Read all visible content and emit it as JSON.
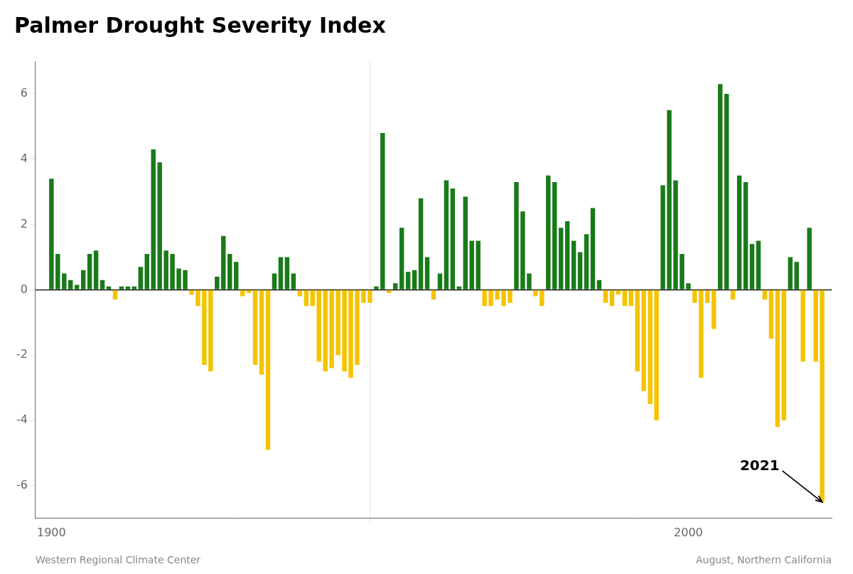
{
  "chart_data": {
    "type": "bar",
    "title": "Palmer Drought Severity Index",
    "subtitle": [
      "Western Regional Climate Center",
      "August, Northern California"
    ],
    "x": [
      1900,
      1901,
      1902,
      1903,
      1904,
      1905,
      1906,
      1907,
      1908,
      1909,
      1910,
      1911,
      1912,
      1913,
      1914,
      1915,
      1916,
      1917,
      1918,
      1919,
      1920,
      1921,
      1922,
      1923,
      1924,
      1925,
      1926,
      1927,
      1928,
      1929,
      1930,
      1931,
      1932,
      1933,
      1934,
      1935,
      1936,
      1937,
      1938,
      1939,
      1940,
      1941,
      1942,
      1943,
      1944,
      1945,
      1946,
      1947,
      1948,
      1949,
      1950,
      1951,
      1952,
      1953,
      1954,
      1955,
      1956,
      1957,
      1958,
      1959,
      1960,
      1961,
      1962,
      1963,
      1964,
      1965,
      1966,
      1967,
      1968,
      1969,
      1970,
      1971,
      1972,
      1973,
      1974,
      1975,
      1976,
      1977,
      1978,
      1979,
      1980,
      1981,
      1982,
      1983,
      1984,
      1985,
      1986,
      1987,
      1988,
      1989,
      1990,
      1991,
      1992,
      1993,
      1994,
      1995,
      1996,
      1997,
      1998,
      1999,
      2000,
      2001,
      2002,
      2003,
      2004,
      2005,
      2006,
      2007,
      2008,
      2009,
      2010,
      2011,
      2012,
      2013,
      2014,
      2015,
      2016,
      2017,
      2018,
      2019,
      2020,
      2021
    ],
    "values": [
      3.4,
      1.1,
      0.5,
      0.3,
      0.15,
      0.6,
      1.1,
      1.2,
      0.3,
      0.1,
      -0.3,
      0.1,
      0.1,
      0.1,
      0.7,
      1.1,
      4.3,
      3.9,
      1.2,
      1.1,
      0.65,
      0.6,
      -0.15,
      -0.5,
      -2.3,
      -2.5,
      0.4,
      1.65,
      1.1,
      0.85,
      -0.2,
      -0.1,
      -2.3,
      -2.6,
      -4.9,
      0.5,
      1.0,
      1.0,
      0.5,
      -0.2,
      -0.5,
      -0.5,
      -2.2,
      -2.5,
      -2.4,
      -2.0,
      -2.5,
      -2.7,
      -2.3,
      -0.4,
      -0.4,
      0.1,
      4.8,
      -0.1,
      0.2,
      1.9,
      0.55,
      0.6,
      2.8,
      1.0,
      -0.3,
      0.5,
      3.35,
      3.1,
      0.1,
      2.85,
      1.5,
      1.5,
      -0.5,
      -0.5,
      -0.3,
      -0.5,
      -0.4,
      3.3,
      2.4,
      0.5,
      -0.2,
      -0.5,
      3.5,
      3.3,
      1.9,
      2.1,
      1.5,
      1.15,
      1.7,
      2.5,
      0.3,
      -0.4,
      -0.5,
      -0.15,
      -0.5,
      -0.5,
      -2.5,
      -3.1,
      -3.5,
      -4.0,
      3.2,
      5.5,
      3.35,
      1.1,
      0.2,
      -0.4,
      -2.7,
      -0.4,
      -1.2,
      6.3,
      6.0,
      -0.3,
      3.5,
      3.3,
      1.4,
      1.5,
      -0.3,
      -1.5,
      -4.2,
      -4.0,
      1.0,
      0.85,
      -2.2,
      1.9,
      -2.2,
      -6.5
    ],
    "colors": [
      "#1a7a1a",
      "#1a7a1a",
      "#1a7a1a",
      "#1a7a1a",
      "#1a7a1a",
      "#1a7a1a",
      "#1a7a1a",
      "#1a7a1a",
      "#1a7a1a",
      "#1a7a1a",
      "#f5c400",
      "#1a7a1a",
      "#1a7a1a",
      "#1a7a1a",
      "#1a7a1a",
      "#1a7a1a",
      "#1a7a1a",
      "#1a7a1a",
      "#1a7a1a",
      "#1a7a1a",
      "#1a7a1a",
      "#1a7a1a",
      "#f5c400",
      "#f5c400",
      "#f5c400",
      "#f5c400",
      "#1a7a1a",
      "#1a7a1a",
      "#1a7a1a",
      "#1a7a1a",
      "#f5c400",
      "#f5c400",
      "#f5c400",
      "#f5c400",
      "#f5c400",
      "#1a7a1a",
      "#1a7a1a",
      "#1a7a1a",
      "#1a7a1a",
      "#f5c400",
      "#f5c400",
      "#f5c400",
      "#f5c400",
      "#f5c400",
      "#f5c400",
      "#f5c400",
      "#f5c400",
      "#f5c400",
      "#f5c400",
      "#f5c400",
      "#f5c400",
      "#1a7a1a",
      "#1a7a1a",
      "#f5c400",
      "#1a7a1a",
      "#1a7a1a",
      "#1a7a1a",
      "#1a7a1a",
      "#1a7a1a",
      "#1a7a1a",
      "#f5c400",
      "#1a7a1a",
      "#1a7a1a",
      "#1a7a1a",
      "#1a7a1a",
      "#1a7a1a",
      "#1a7a1a",
      "#1a7a1a",
      "#f5c400",
      "#f5c400",
      "#f5c400",
      "#f5c400",
      "#f5c400",
      "#1a7a1a",
      "#1a7a1a",
      "#1a7a1a",
      "#f5c400",
      "#f5c400",
      "#1a7a1a",
      "#1a7a1a",
      "#1a7a1a",
      "#1a7a1a",
      "#1a7a1a",
      "#1a7a1a",
      "#1a7a1a",
      "#1a7a1a",
      "#1a7a1a",
      "#f5c400",
      "#f5c400",
      "#f5c400",
      "#f5c400",
      "#f5c400",
      "#f5c400",
      "#f5c400",
      "#f5c400",
      "#f5c400",
      "#1a7a1a",
      "#1a7a1a",
      "#1a7a1a",
      "#1a7a1a",
      "#1a7a1a",
      "#f5c400",
      "#f5c400",
      "#f5c400",
      "#f5c400",
      "#1a7a1a",
      "#1a7a1a",
      "#f5c400",
      "#1a7a1a",
      "#1a7a1a",
      "#1a7a1a",
      "#1a7a1a",
      "#f5c400",
      "#f5c400",
      "#f5c400",
      "#f5c400",
      "#1a7a1a",
      "#1a7a1a",
      "#f5c400",
      "#1a7a1a",
      "#f5c400",
      "#f5c400"
    ],
    "xlim": [
      1897.5,
      2022.5
    ],
    "xticks": [
      1900,
      2000
    ],
    "ylim": [
      -7,
      7
    ],
    "yticks": [
      -6,
      -4,
      -2,
      0,
      2,
      4,
      6
    ],
    "grid": true,
    "annotations": [
      {
        "text": "2021",
        "x": 2021,
        "y": -6.5
      }
    ]
  }
}
